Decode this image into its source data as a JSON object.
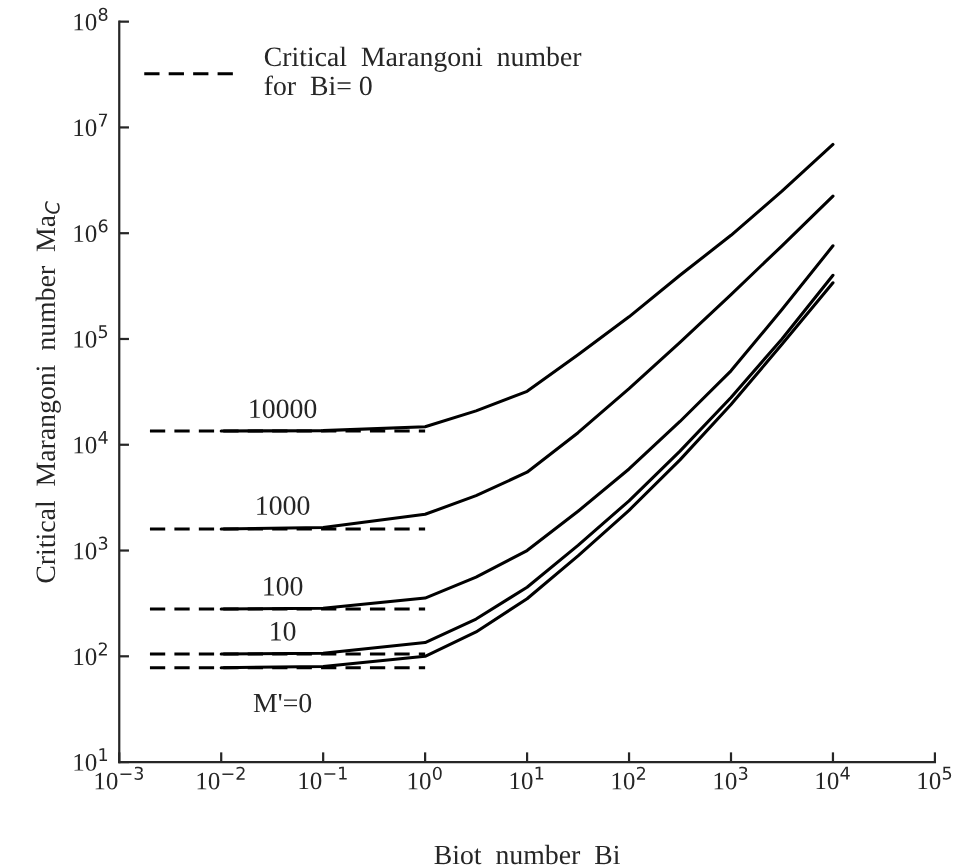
{
  "chart_data": {
    "type": "line",
    "xlabel": "Biot  number  Bi",
    "ylabel": "Critical  Marangoni  number  Ma$_{C}$",
    "log": "xy",
    "grid": false,
    "legend": "top left",
    "xlim": [
      0.001,
      100000
    ],
    "ylim": [
      10,
      100000000
    ],
    "xticks": [
      {
        "value": 0.001,
        "label": "10$^{−3}$"
      },
      {
        "value": 0.01,
        "label": "10$^{−2}$"
      },
      {
        "value": 0.1,
        "label": "10$^{−1}$"
      },
      {
        "value": 1,
        "label": "10$^{0}$"
      },
      {
        "value": 10,
        "label": "10$^{1}$"
      },
      {
        "value": 100,
        "label": "10$^{2}$"
      },
      {
        "value": 1000,
        "label": "10$^{3}$"
      },
      {
        "value": 10000,
        "label": "10$^{4}$"
      },
      {
        "value": 100000,
        "label": "10$^{5}$"
      }
    ],
    "yticks": [
      {
        "value": 10,
        "label": "10$^{1}$"
      },
      {
        "value": 100,
        "label": "10$^{2}$"
      },
      {
        "value": 1000,
        "label": "10$^{3}$"
      },
      {
        "value": 10000,
        "label": "10$^{4}$"
      },
      {
        "value": 100000,
        "label": "10$^{5}$"
      },
      {
        "value": 1000000,
        "label": "10$^{6}$"
      },
      {
        "value": 10000000,
        "label": "10$^{7}$"
      },
      {
        "value": 100000000,
        "label": "10$^{8}$"
      }
    ],
    "x": [
      0.002,
      0.01,
      0.1,
      1,
      3.16,
      10,
      31.6,
      100,
      316,
      1000,
      3162,
      10000
    ],
    "series": [
      {
        "name": "10000",
        "color": "#000000",
        "line_style": "solid",
        "values": [
          null,
          13500,
          13600,
          14800,
          20900,
          32000,
          71000,
          162000,
          400000,
          955000,
          2500000,
          6900000
        ]
      },
      {
        "name": "1000",
        "color": "#000000",
        "line_style": "solid",
        "values": [
          null,
          1600,
          1650,
          2200,
          3300,
          5500,
          13000,
          34000,
          93000,
          263000,
          760000,
          2240000
        ]
      },
      {
        "name": "100",
        "color": "#000000",
        "line_style": "solid",
        "values": [
          null,
          280,
          285,
          355,
          560,
          1000,
          2350,
          5900,
          16600,
          50000,
          190000,
          760000
        ]
      },
      {
        "name": "10",
        "color": "#000000",
        "line_style": "solid",
        "values": [
          null,
          105,
          107,
          135,
          225,
          450,
          1120,
          2950,
          8700,
          28000,
          100000,
          400000
        ]
      },
      {
        "name": "M'=0",
        "color": "#000000",
        "line_style": "solid",
        "values": [
          null,
          78,
          80,
          100,
          170,
          350,
          890,
          2400,
          7200,
          24000,
          89000,
          340000
        ]
      },
      {
        "name": "Critical  Marangoni  number\nfor  Bi= 0",
        "color": "#000000",
        "line_style": "dashed",
        "values": [
          13500,
          13500,
          13500,
          13500,
          null,
          null,
          null,
          null,
          null,
          null,
          null,
          null
        ]
      },
      {
        "color": "#000000",
        "line_style": "dashed",
        "values": [
          1600,
          1600,
          1600,
          1600,
          null,
          null,
          null,
          null,
          null,
          null,
          null,
          null
        ]
      },
      {
        "color": "#000000",
        "line_style": "dashed",
        "values": [
          280,
          280,
          280,
          280,
          null,
          null,
          null,
          null,
          null,
          null,
          null,
          null
        ]
      },
      {
        "color": "#000000",
        "line_style": "dashed",
        "values": [
          105,
          105,
          105,
          105,
          null,
          null,
          null,
          null,
          null,
          null,
          null,
          null
        ]
      },
      {
        "color": "#000000",
        "line_style": "dashed",
        "values": [
          78,
          78,
          78,
          78,
          null,
          null,
          null,
          null,
          null,
          null,
          null,
          null
        ]
      }
    ]
  }
}
